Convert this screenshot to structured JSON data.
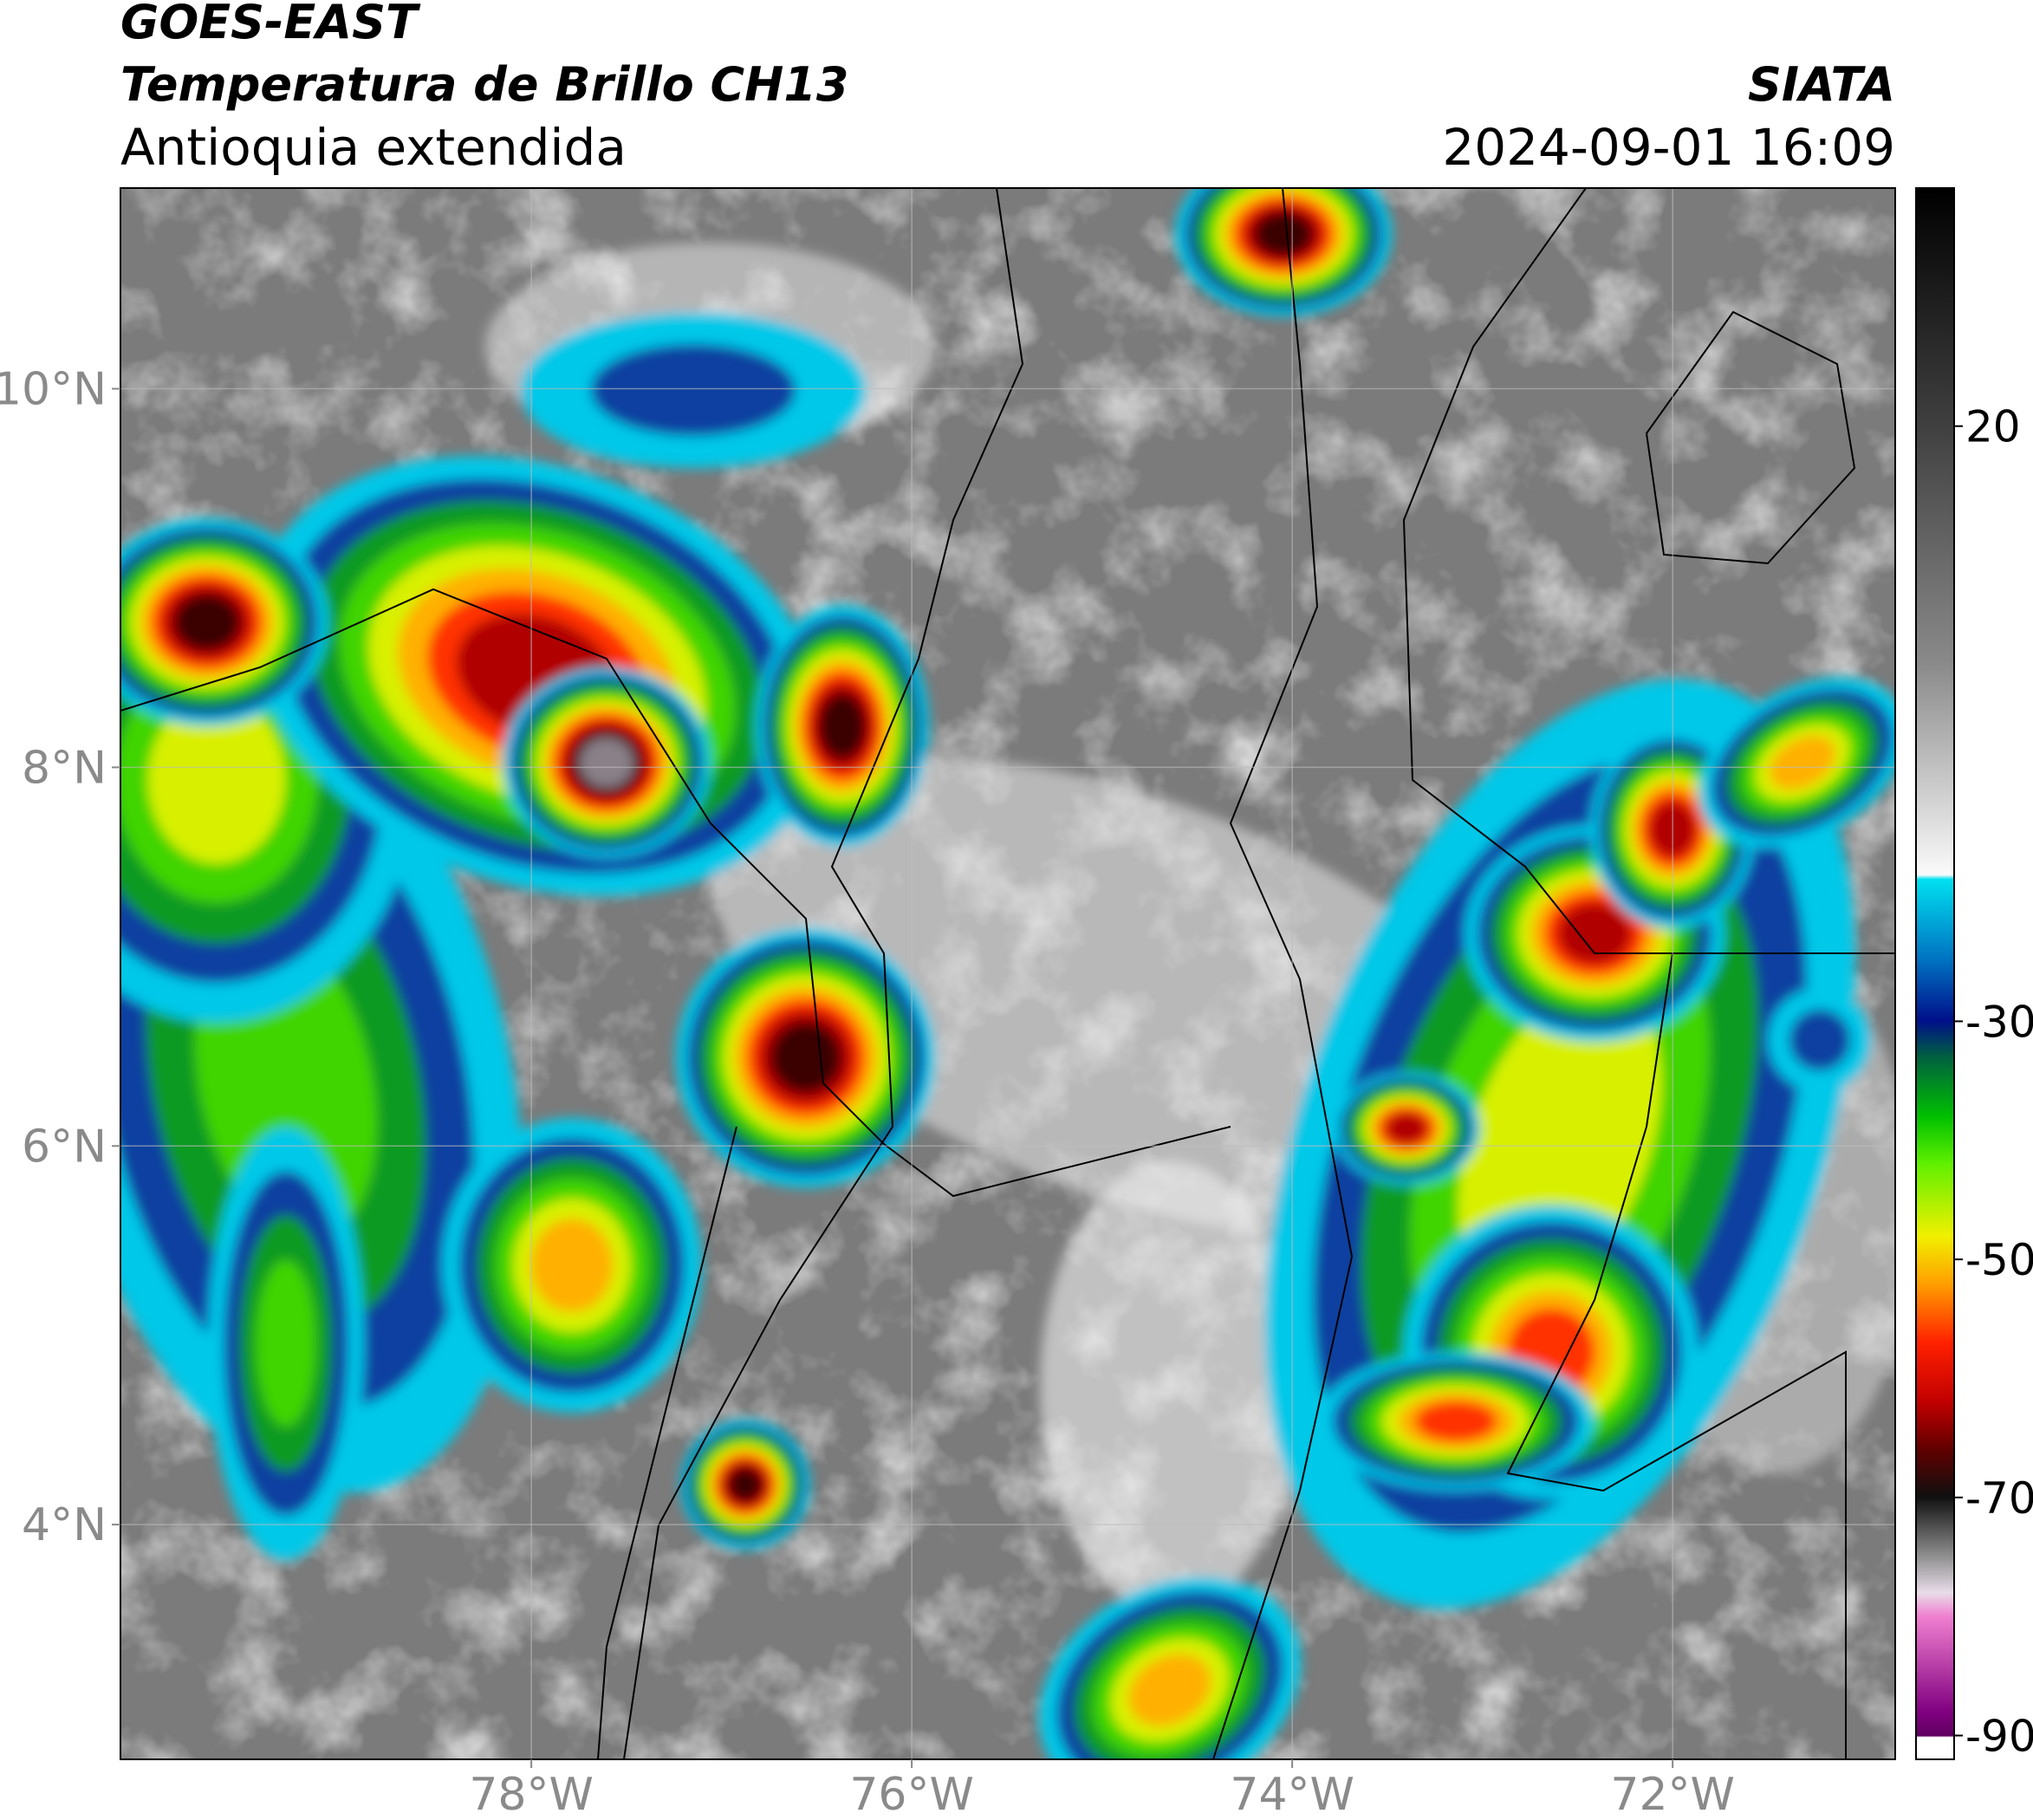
{
  "chart_data": {
    "type": "map",
    "title": "GOES-EAST",
    "subtitle": "Temperatura de Brillo CH13",
    "region": "Antioquia extendida",
    "source": "SIATA",
    "datetime": "2024-09-01 16:09",
    "xlim": [
      -80.16,
      -70.83
    ],
    "ylim": [
      2.76,
      11.06
    ],
    "xticks": [
      {
        "value": -78,
        "label": "78°W"
      },
      {
        "value": -76,
        "label": "76°W"
      },
      {
        "value": -74,
        "label": "74°W"
      },
      {
        "value": -72,
        "label": "72°W"
      }
    ],
    "yticks": [
      {
        "value": 4,
        "label": "4°N"
      },
      {
        "value": 6,
        "label": "6°N"
      },
      {
        "value": 8,
        "label": "8°N"
      },
      {
        "value": 10,
        "label": "10°N"
      }
    ],
    "grid": true,
    "colorbar": {
      "lim": [
        -92,
        40
      ],
      "ticks": [
        20,
        -30,
        -50,
        -70,
        -90
      ]
    }
  }
}
